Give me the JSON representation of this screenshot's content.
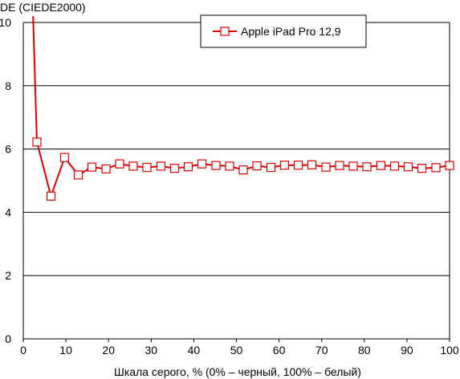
{
  "chart_data": {
    "type": "line",
    "title": "",
    "ylabel": "DE (CIEDE2000)",
    "xlabel": "Шкала серого, % (0% – черный, 100% – белый)",
    "xlim": [
      0,
      100
    ],
    "ylim": [
      0,
      10
    ],
    "xticks": [
      0,
      10,
      20,
      30,
      40,
      50,
      60,
      70,
      80,
      90,
      100
    ],
    "yticks": [
      0,
      2,
      4,
      6,
      8,
      10
    ],
    "grid": "horizontal",
    "legend_position": "top-right",
    "series": [
      {
        "name": "Apple iPad Pro 12,9",
        "color": "#e00000",
        "marker": "square",
        "x": [
          3.2,
          6.5,
          9.7,
          12.9,
          16.1,
          19.4,
          22.6,
          25.8,
          29.0,
          32.3,
          35.5,
          38.7,
          41.9,
          45.2,
          48.4,
          51.6,
          54.8,
          58.1,
          61.3,
          64.5,
          67.7,
          71.0,
          74.2,
          77.4,
          80.6,
          83.9,
          87.1,
          90.3,
          93.5,
          96.8,
          100.0
        ],
        "y": [
          6.22,
          4.51,
          5.73,
          5.18,
          5.43,
          5.37,
          5.53,
          5.46,
          5.42,
          5.46,
          5.39,
          5.44,
          5.53,
          5.48,
          5.46,
          5.34,
          5.47,
          5.42,
          5.49,
          5.49,
          5.5,
          5.43,
          5.48,
          5.46,
          5.44,
          5.48,
          5.46,
          5.44,
          5.39,
          5.41,
          5.48
        ]
      }
    ],
    "offscale_start": {
      "x": 2.3,
      "y": 10.2
    }
  }
}
